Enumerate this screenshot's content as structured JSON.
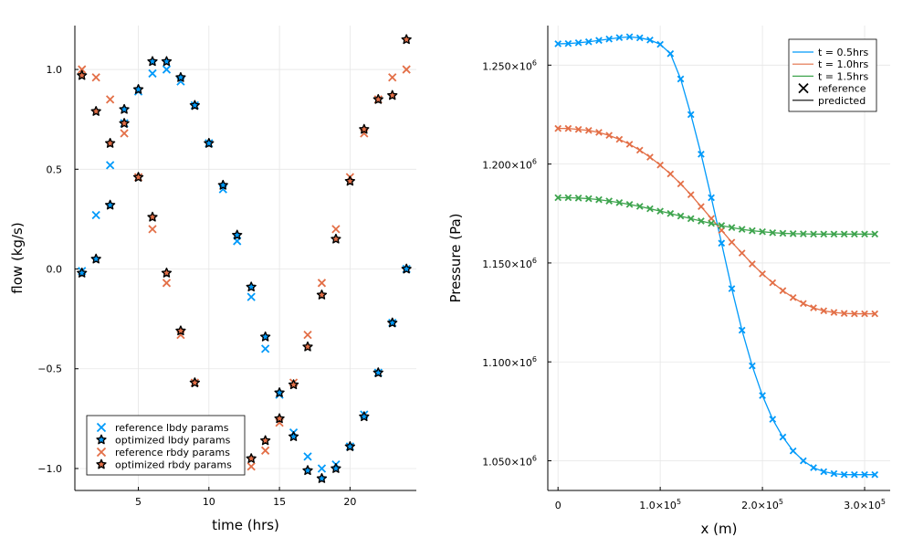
{
  "chart_data": [
    {
      "type": "scatter",
      "xlabel": "time (hrs)",
      "ylabel": "flow (kg/s)",
      "xlim": [
        0.5,
        24.7
      ],
      "ylim": [
        -1.11,
        1.22
      ],
      "xticks": [
        5,
        10,
        15,
        20
      ],
      "yticks": [
        -1.0,
        -0.5,
        0.0,
        0.5,
        1.0
      ],
      "grid": true,
      "legend_position": "bottom-left",
      "series": [
        {
          "name": "reference lbdy params",
          "marker": "x",
          "color": "#009AFA",
          "x": [
            1,
            2,
            3,
            4,
            5,
            6,
            7,
            8,
            9,
            10,
            11,
            12,
            13,
            14,
            15,
            16,
            17,
            18,
            19,
            20,
            21,
            22,
            23,
            24
          ],
          "y": [
            -0.01,
            0.27,
            0.52,
            0.73,
            0.89,
            0.98,
            1.0,
            0.94,
            0.82,
            0.63,
            0.4,
            0.14,
            -0.14,
            -0.4,
            -0.63,
            -0.82,
            -0.94,
            -1.0,
            -0.98,
            -0.89,
            -0.73,
            -0.52,
            -0.27,
            0.0
          ]
        },
        {
          "name": "optimized lbdy params",
          "marker": "star",
          "color": "#009AFA",
          "x": [
            1,
            2,
            3,
            4,
            5,
            6,
            7,
            8,
            9,
            10,
            11,
            12,
            13,
            14,
            15,
            16,
            17,
            18,
            19,
            20,
            21,
            22,
            23,
            24
          ],
          "y": [
            -0.02,
            0.05,
            0.32,
            0.8,
            0.9,
            1.04,
            1.04,
            0.96,
            0.82,
            0.63,
            0.42,
            0.17,
            -0.09,
            -0.34,
            -0.62,
            -0.84,
            -1.01,
            -1.05,
            -1.0,
            -0.89,
            -0.74,
            -0.52,
            -0.27,
            0.0
          ]
        },
        {
          "name": "reference rbdy params",
          "marker": "x",
          "color": "#E36F47",
          "x": [
            1,
            2,
            3,
            4,
            5,
            6,
            7,
            8,
            9,
            10,
            11,
            12,
            13,
            14,
            15,
            16,
            17,
            18,
            19,
            20,
            21,
            22,
            23,
            24
          ],
          "y": [
            1.0,
            0.96,
            0.85,
            0.68,
            0.46,
            0.2,
            -0.07,
            -0.33,
            -0.57,
            -0.77,
            -0.91,
            -0.99,
            -0.99,
            -0.91,
            -0.77,
            -0.57,
            -0.33,
            -0.07,
            0.2,
            0.46,
            0.68,
            0.85,
            0.96,
            1.0
          ]
        },
        {
          "name": "optimized rbdy params",
          "marker": "star",
          "color": "#E36F47",
          "x": [
            1,
            2,
            3,
            4,
            5,
            6,
            7,
            8,
            9,
            10,
            11,
            12,
            13,
            14,
            15,
            16,
            17,
            18,
            19,
            20,
            21,
            22,
            23,
            24
          ],
          "y": [
            0.97,
            0.79,
            0.63,
            0.73,
            0.46,
            0.26,
            -0.02,
            -0.31,
            -0.57,
            -0.77,
            -0.91,
            -0.99,
            -0.95,
            -0.86,
            -0.75,
            -0.58,
            -0.39,
            -0.13,
            0.15,
            0.44,
            0.7,
            0.85,
            0.87,
            1.15
          ]
        }
      ]
    },
    {
      "type": "line",
      "xlabel": "x (m)",
      "ylabel": "Pressure (Pa)",
      "xlim": [
        -10000,
        325000
      ],
      "ylim": [
        1035000,
        1270000
      ],
      "xticks": [
        {
          "value": 0,
          "label": "0",
          "exp": ""
        },
        {
          "value": 100000,
          "label": "1.0×10",
          "exp": "5"
        },
        {
          "value": 200000,
          "label": "2.0×10",
          "exp": "5"
        },
        {
          "value": 300000,
          "label": "3.0×10",
          "exp": "5"
        }
      ],
      "yticks": [
        {
          "value": 1050000,
          "label": "1.050×10",
          "exp": "6"
        },
        {
          "value": 1100000,
          "label": "1.100×10",
          "exp": "6"
        },
        {
          "value": 1150000,
          "label": "1.150×10",
          "exp": "6"
        },
        {
          "value": 1200000,
          "label": "1.200×10",
          "exp": "6"
        },
        {
          "value": 1250000,
          "label": "1.250×10",
          "exp": "6"
        }
      ],
      "grid": true,
      "legend_position": "top-right",
      "legend": [
        {
          "label": "t = 0.5hrs",
          "kind": "line",
          "color": "#009AFA"
        },
        {
          "label": "t = 1.0hrs",
          "kind": "line",
          "color": "#E36F47"
        },
        {
          "label": "t = 1.5hrs",
          "kind": "line",
          "color": "#3EA44E"
        },
        {
          "label": "reference",
          "kind": "x",
          "color": "#000000"
        },
        {
          "label": "predicted",
          "kind": "line",
          "color": "#000000"
        }
      ],
      "x": [
        0,
        10000,
        20000,
        30000,
        40000,
        50000,
        60000,
        70000,
        80000,
        90000,
        100000,
        110000,
        120000,
        130000,
        140000,
        150000,
        160000,
        170000,
        180000,
        190000,
        200000,
        210000,
        220000,
        230000,
        240000,
        250000,
        260000,
        270000,
        280000,
        290000,
        300000,
        310000
      ],
      "series": [
        {
          "name": "t = 0.5hrs",
          "color": "#009AFA",
          "y": [
            1260800,
            1260900,
            1261300,
            1261800,
            1262500,
            1263200,
            1263900,
            1264300,
            1263800,
            1262700,
            1260500,
            1255800,
            1243000,
            1225000,
            1205000,
            1183000,
            1160000,
            1137000,
            1116000,
            1098000,
            1083000,
            1071000,
            1062000,
            1055000,
            1050000,
            1046500,
            1044500,
            1043500,
            1043000,
            1043000,
            1043000,
            1043000
          ]
        },
        {
          "name": "t = 1.0hrs",
          "color": "#E36F47",
          "y": [
            1218000,
            1218000,
            1217500,
            1217000,
            1216000,
            1214500,
            1212500,
            1210000,
            1207000,
            1203500,
            1199500,
            1195000,
            1190000,
            1184500,
            1178500,
            1172500,
            1166500,
            1160500,
            1155000,
            1149500,
            1144500,
            1140000,
            1136000,
            1132500,
            1129500,
            1127300,
            1125800,
            1125000,
            1124500,
            1124300,
            1124300,
            1124300
          ]
        },
        {
          "name": "t = 1.5hrs",
          "color": "#3EA44E",
          "y": [
            1183000,
            1183000,
            1182800,
            1182500,
            1182000,
            1181300,
            1180500,
            1179600,
            1178600,
            1177400,
            1176200,
            1175000,
            1173700,
            1172400,
            1171200,
            1170000,
            1168900,
            1167900,
            1167000,
            1166300,
            1165800,
            1165300,
            1165000,
            1164800,
            1164700,
            1164600,
            1164600,
            1164600,
            1164600,
            1164600,
            1164600,
            1164600
          ]
        }
      ]
    }
  ]
}
